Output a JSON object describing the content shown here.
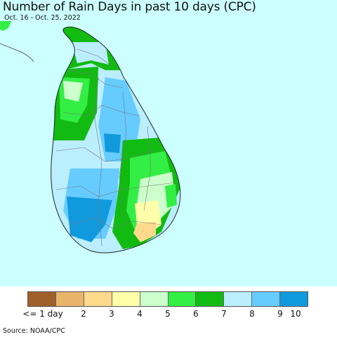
{
  "title": "Number of Rain Days in past 10 days (CPC)",
  "date_range": "Oct. 16 - Oct. 25, 2022",
  "source": "Source: NOAA/CPC",
  "colors": {
    "ocean": "#ccffff",
    "border": "#555555"
  },
  "legend": {
    "items": [
      {
        "label": "<= 1 day",
        "color": "#a0602c"
      },
      {
        "label": "2",
        "color": "#e8b46a"
      },
      {
        "label": "3",
        "color": "#ffd98c"
      },
      {
        "label": "4",
        "color": "#ffffaa"
      },
      {
        "label": "5",
        "color": "#ccffcc"
      },
      {
        "label": "6",
        "color": "#33ee44"
      },
      {
        "label": "7",
        "color": "#11bb11"
      },
      {
        "label": "8",
        "color": "#bbeeff"
      },
      {
        "label": "9",
        "color": "#66ccff"
      },
      {
        "label": "10",
        "color": "#1199dd"
      }
    ]
  }
}
